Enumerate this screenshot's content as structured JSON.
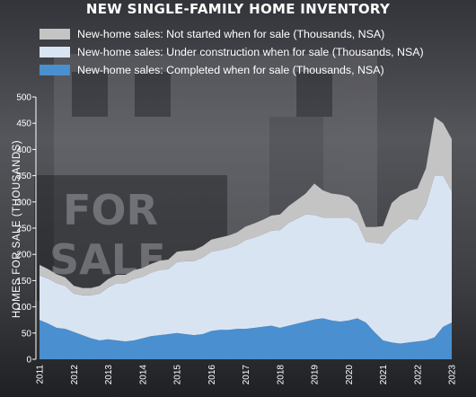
{
  "chart_data": {
    "type": "area",
    "stacked": true,
    "title": "NEW SINGLE-FAMILY HOME INVENTORY",
    "ylabel": "HOMES FOR SALE (THOUSANDS)",
    "xlabel": "",
    "ylim": [
      0,
      500
    ],
    "yticks": [
      "0",
      "50",
      "100",
      "150",
      "200",
      "250",
      "300",
      "350",
      "400",
      "450",
      "500"
    ],
    "xlim": [
      2011,
      2023
    ],
    "xticks": [
      "2011",
      "2012",
      "2013",
      "2014",
      "2015",
      "2016",
      "2017",
      "2018",
      "2019",
      "2020",
      "2021",
      "2022",
      "2023"
    ],
    "grid": false,
    "legend_position": "top-left",
    "x": [
      2011.0,
      2011.25,
      2011.5,
      2011.75,
      2012.0,
      2012.25,
      2012.5,
      2012.75,
      2013.0,
      2013.25,
      2013.5,
      2013.75,
      2014.0,
      2014.25,
      2014.5,
      2014.75,
      2015.0,
      2015.25,
      2015.5,
      2015.75,
      2016.0,
      2016.25,
      2016.5,
      2016.75,
      2017.0,
      2017.25,
      2017.5,
      2017.75,
      2018.0,
      2018.25,
      2018.5,
      2018.75,
      2019.0,
      2019.25,
      2019.5,
      2019.75,
      2020.0,
      2020.25,
      2020.5,
      2020.75,
      2021.0,
      2021.25,
      2021.5,
      2021.75,
      2022.0,
      2022.25,
      2022.5,
      2022.75,
      2023.0
    ],
    "series": [
      {
        "name": "New-home sales: Completed when for sale (Thousands, NSA)",
        "color": "#4a8fcf",
        "values": [
          75,
          68,
          60,
          58,
          52,
          46,
          40,
          36,
          38,
          36,
          34,
          36,
          40,
          44,
          46,
          48,
          50,
          48,
          46,
          48,
          54,
          56,
          56,
          58,
          58,
          60,
          62,
          64,
          60,
          64,
          68,
          72,
          76,
          78,
          74,
          72,
          74,
          78,
          70,
          52,
          36,
          32,
          30,
          32,
          34,
          36,
          42,
          62,
          70
        ]
      },
      {
        "name": "New-home sales: Under construction when for sale (Thousands, NSA)",
        "color": "#d9e4f3",
        "values": [
          85,
          86,
          85,
          82,
          73,
          76,
          82,
          89,
          99,
          109,
          111,
          117,
          117,
          121,
          124,
          124,
          135,
          139,
          141,
          146,
          151,
          152,
          156,
          159,
          169,
          172,
          176,
          181,
          186,
          196,
          200,
          204,
          199,
          192,
          196,
          198,
          196,
          182,
          154,
          170,
          184,
          210,
          224,
          236,
          232,
          258,
          308,
          288,
          250
        ]
      },
      {
        "name": "New-home sales: Not started when for sale (Thousands, NSA)",
        "color": "#c4c4c4",
        "values": [
          20,
          18,
          17,
          16,
          15,
          14,
          14,
          15,
          16,
          16,
          16,
          17,
          17,
          17,
          18,
          18,
          20,
          20,
          21,
          22,
          23,
          24,
          24,
          25,
          26,
          27,
          28,
          29,
          30,
          32,
          36,
          40,
          60,
          52,
          46,
          44,
          40,
          34,
          28,
          30,
          34,
          56,
          58,
          52,
          60,
          70,
          112,
          100,
          100
        ]
      }
    ]
  }
}
